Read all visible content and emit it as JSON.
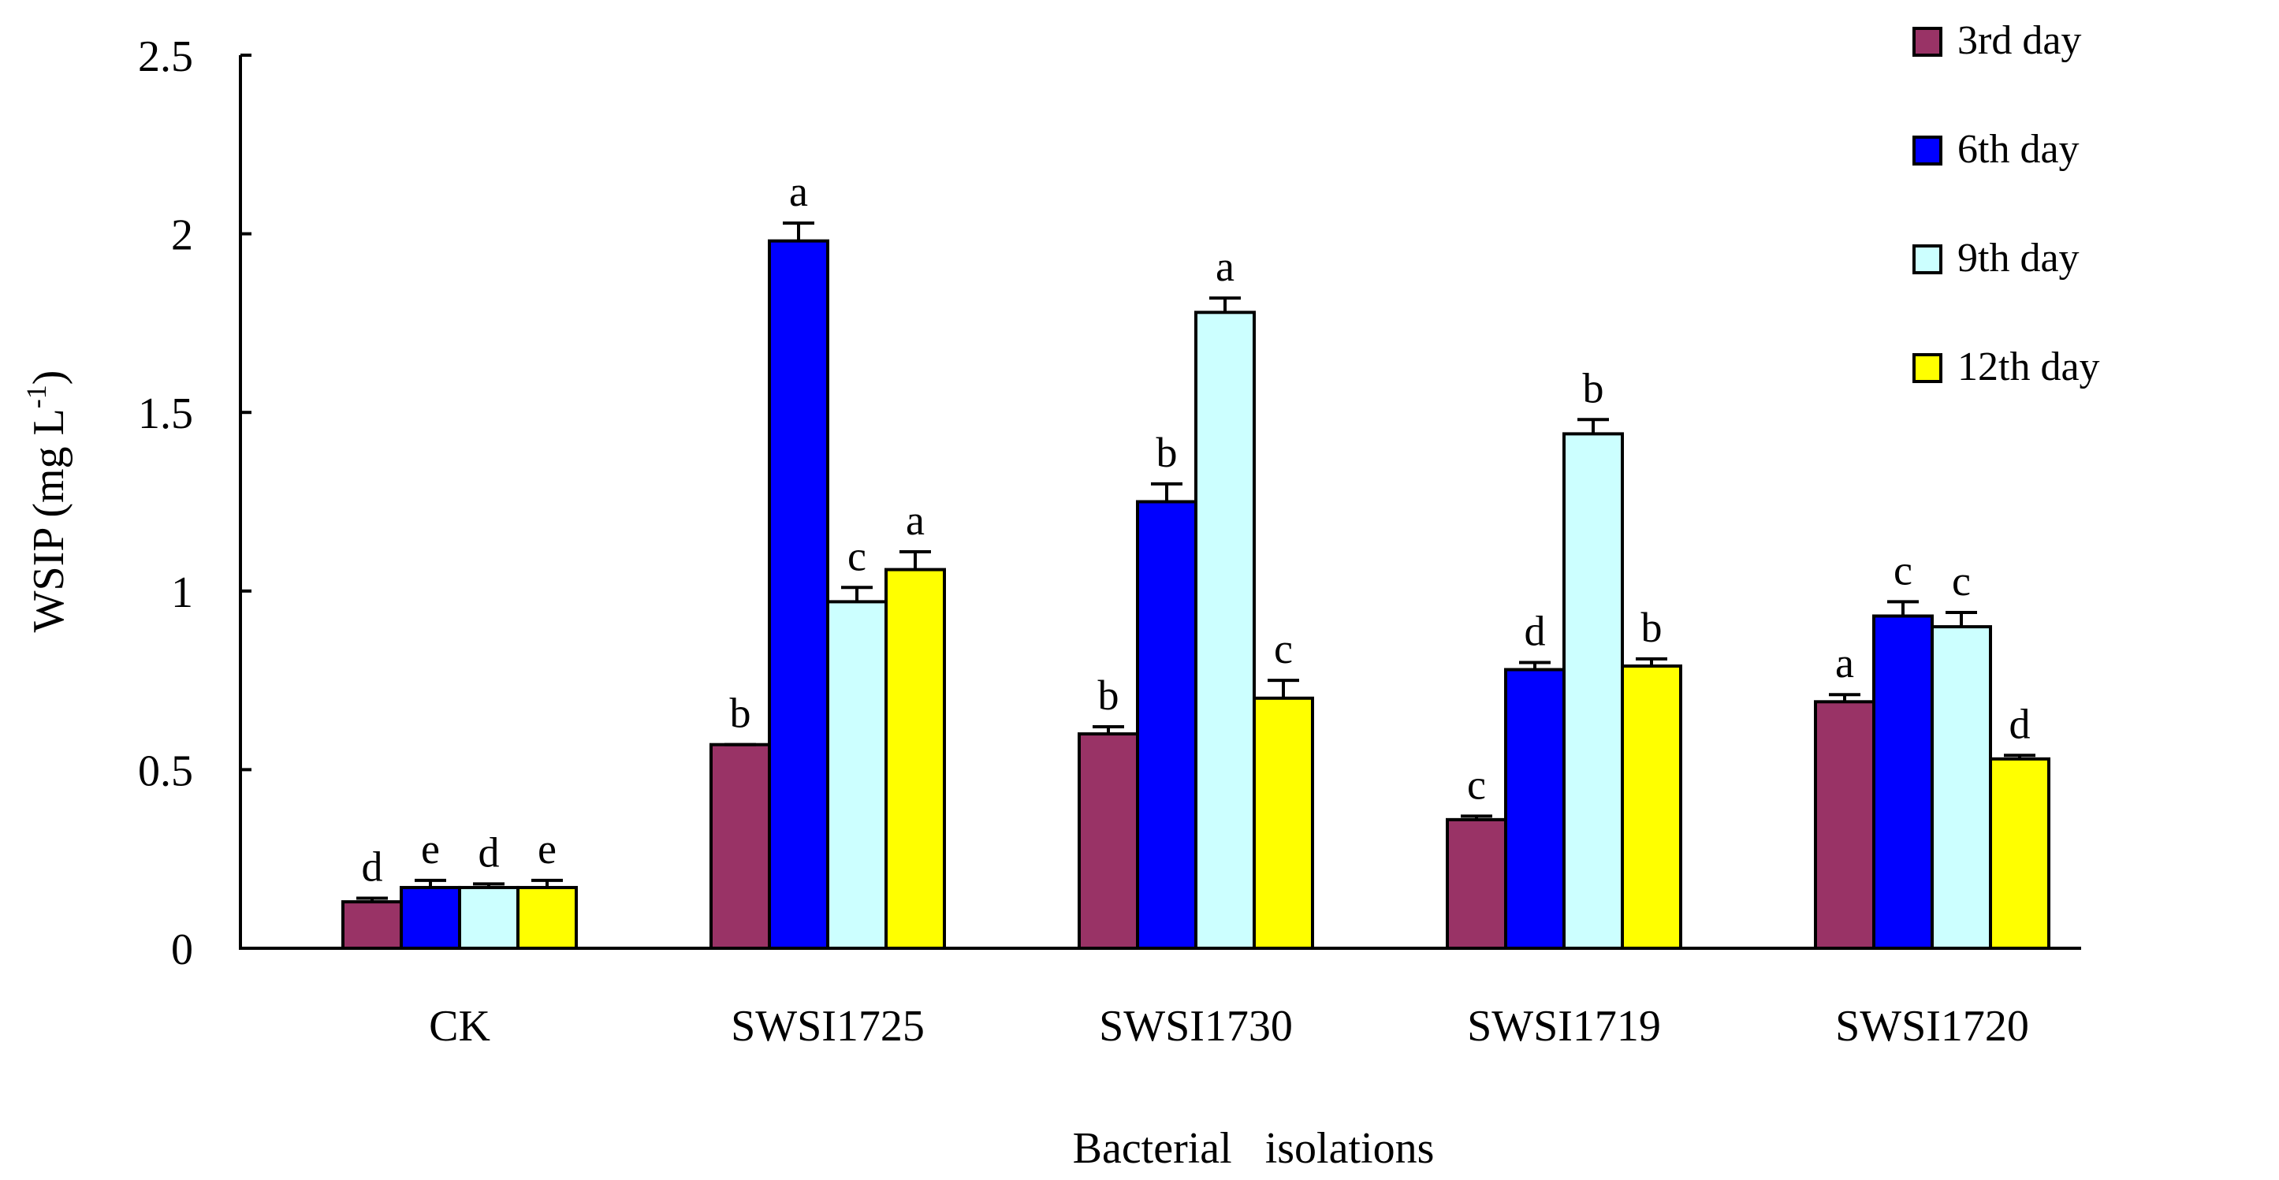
{
  "chart_data": {
    "type": "bar",
    "title": "",
    "xlabel": "Bacterial isolations",
    "ylabel_main": "WSIP (mg L",
    "ylabel_sup": "-1",
    "ylabel_close": ")",
    "ylim": [
      0,
      2.5
    ],
    "yticks": [
      "0",
      "0.5",
      "1",
      "1.5",
      "2",
      "2.5"
    ],
    "ytick_values": [
      0,
      0.5,
      1,
      1.5,
      2,
      2.5
    ],
    "categories": [
      "CK",
      "SWSI1725",
      "SWSI1730",
      "SWSI1719",
      "SWSI1720"
    ],
    "series": [
      {
        "name": "3rd day",
        "color": "#993366",
        "values": [
          0.13,
          0.57,
          0.6,
          0.36,
          0.69
        ],
        "errors": [
          0.01,
          0.0,
          0.02,
          0.01,
          0.02
        ],
        "labels": [
          "d",
          "b",
          "b",
          "c",
          "a"
        ]
      },
      {
        "name": "6th day",
        "color": "#0000FF",
        "values": [
          0.17,
          1.98,
          1.25,
          0.78,
          0.93
        ],
        "errors": [
          0.02,
          0.05,
          0.05,
          0.02,
          0.04
        ],
        "labels": [
          "e",
          "a",
          "b",
          "d",
          "c"
        ]
      },
      {
        "name": "9th day",
        "color": "#CCFFFF",
        "values": [
          0.17,
          0.97,
          1.78,
          1.44,
          0.9
        ],
        "errors": [
          0.01,
          0.04,
          0.04,
          0.04,
          0.04
        ],
        "labels": [
          "d",
          "c",
          "a",
          "b",
          "c"
        ]
      },
      {
        "name": "12th day",
        "color": "#FFFF00",
        "values": [
          0.17,
          1.06,
          0.7,
          0.79,
          0.53
        ],
        "errors": [
          0.02,
          0.05,
          0.05,
          0.02,
          0.01
        ],
        "labels": [
          "e",
          "a",
          "c",
          "b",
          "d"
        ]
      }
    ],
    "grid": false,
    "legend_position": "top-right"
  }
}
